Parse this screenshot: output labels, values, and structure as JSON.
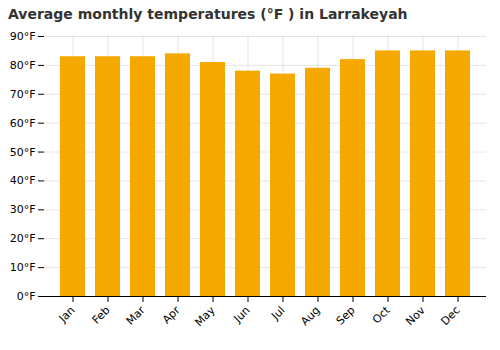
{
  "chart_data": {
    "type": "bar",
    "title": "Average monthly temperatures (°F ) in Larrakeyah",
    "categories": [
      "Jan",
      "Feb",
      "Mar",
      "Apr",
      "May",
      "Jun",
      "Jul",
      "Aug",
      "Sep",
      "Oct",
      "Nov",
      "Dec"
    ],
    "values": [
      83,
      83,
      83,
      84,
      81,
      78,
      77,
      79,
      82,
      85,
      85,
      85
    ],
    "color": "#F5A800",
    "ylim": [
      0,
      90
    ],
    "yticks": [
      {
        "value": 0,
        "label": "0°F"
      },
      {
        "value": 10,
        "label": "10°F"
      },
      {
        "value": 20,
        "label": "20°F"
      },
      {
        "value": 30,
        "label": "30°F"
      },
      {
        "value": 40,
        "label": "40°F"
      },
      {
        "value": 50,
        "label": "50°F"
      },
      {
        "value": 60,
        "label": "60°F"
      },
      {
        "value": 70,
        "label": "70°F"
      },
      {
        "value": 80,
        "label": "80°F"
      },
      {
        "value": 90,
        "label": "90°F"
      }
    ],
    "grid": true
  }
}
